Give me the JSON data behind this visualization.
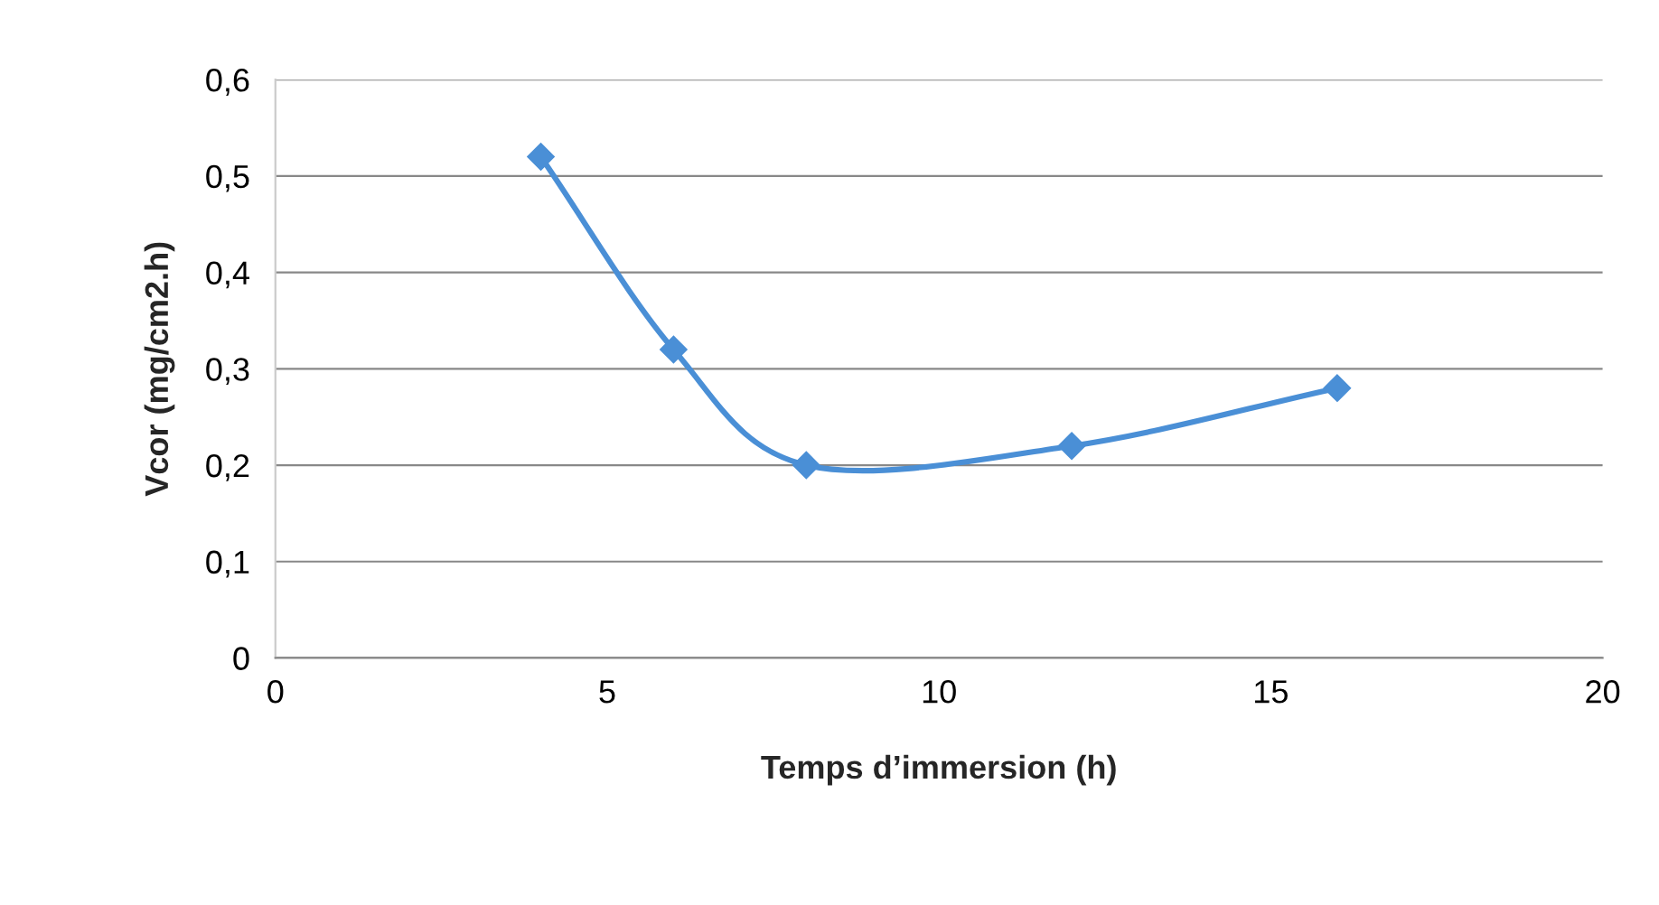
{
  "chart_data": {
    "type": "line",
    "xlabel": "Temps d’immersion (h)",
    "ylabel": "Vcor (mg/cm2.h)",
    "x": [
      4,
      6,
      8,
      12,
      16
    ],
    "series": [
      {
        "color": "#4a8fd6",
        "values": [
          0.52,
          0.32,
          0.2,
          0.22,
          0.28
        ]
      }
    ],
    "xlim": [
      0,
      20
    ],
    "xticks": [
      0,
      5,
      10,
      15,
      20
    ],
    "ylim": [
      0,
      0.6
    ],
    "yticks": [
      {
        "value": 0,
        "label": "0"
      },
      {
        "value": 0.1,
        "label": "0,1"
      },
      {
        "value": 0.2,
        "label": "0,2"
      },
      {
        "value": 0.3,
        "label": "0,3"
      },
      {
        "value": 0.4,
        "label": "0,4"
      },
      {
        "value": 0.5,
        "label": "0,5"
      },
      {
        "value": 0.6,
        "label": "0,6"
      }
    ],
    "grid": "y",
    "legend": false,
    "marker": "diamond",
    "line_style": "solid"
  }
}
